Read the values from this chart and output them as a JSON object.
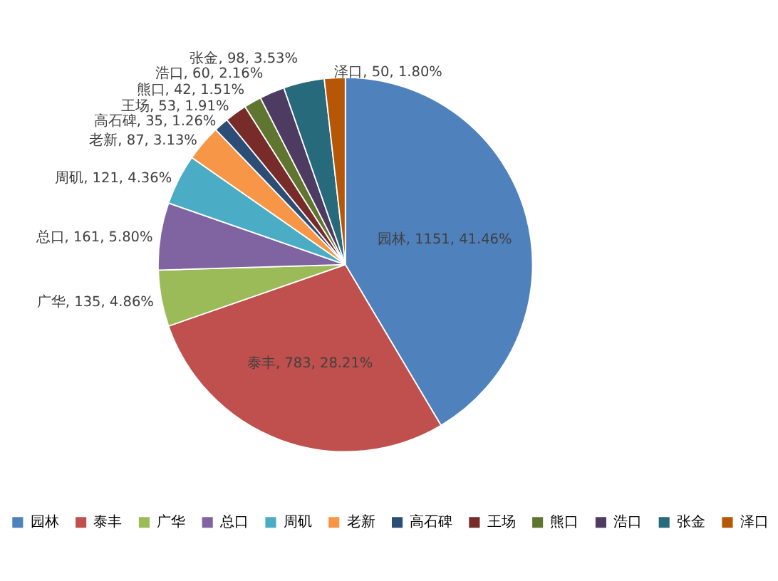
{
  "chart_data": {
    "type": "pie",
    "categories": [
      "园林",
      "泰丰",
      "广华",
      "总口",
      "周矶",
      "老新",
      "高石碑",
      "王场",
      "熊口",
      "浩口",
      "张金",
      "泽口"
    ],
    "values": [
      1151,
      783,
      135,
      161,
      121,
      87,
      35,
      53,
      42,
      60,
      98,
      50
    ],
    "value_labels": [
      "园林, 1151, 41.46%",
      "泰丰, 783, 28.21%",
      "广华, 135, 4.86%",
      "总口, 161, 5.80%",
      "周矶, 121, 4.36%",
      "老新, 87, 3.13%",
      "高石碑, 35, 1.26%",
      "王场, 53, 1.91%",
      "熊口, 42, 1.51%",
      "浩口, 60, 2.16%",
      "张金, 98, 3.53%",
      "泽口, 50, 1.80%"
    ],
    "colors": [
      "#4f81bd",
      "#c0504d",
      "#9bbb59",
      "#8064a2",
      "#4bacc6",
      "#f79646",
      "#2c4d75",
      "#772c2a",
      "#5f7530",
      "#4d3b62",
      "#276a7c",
      "#b65708"
    ],
    "legend": "bottom"
  }
}
